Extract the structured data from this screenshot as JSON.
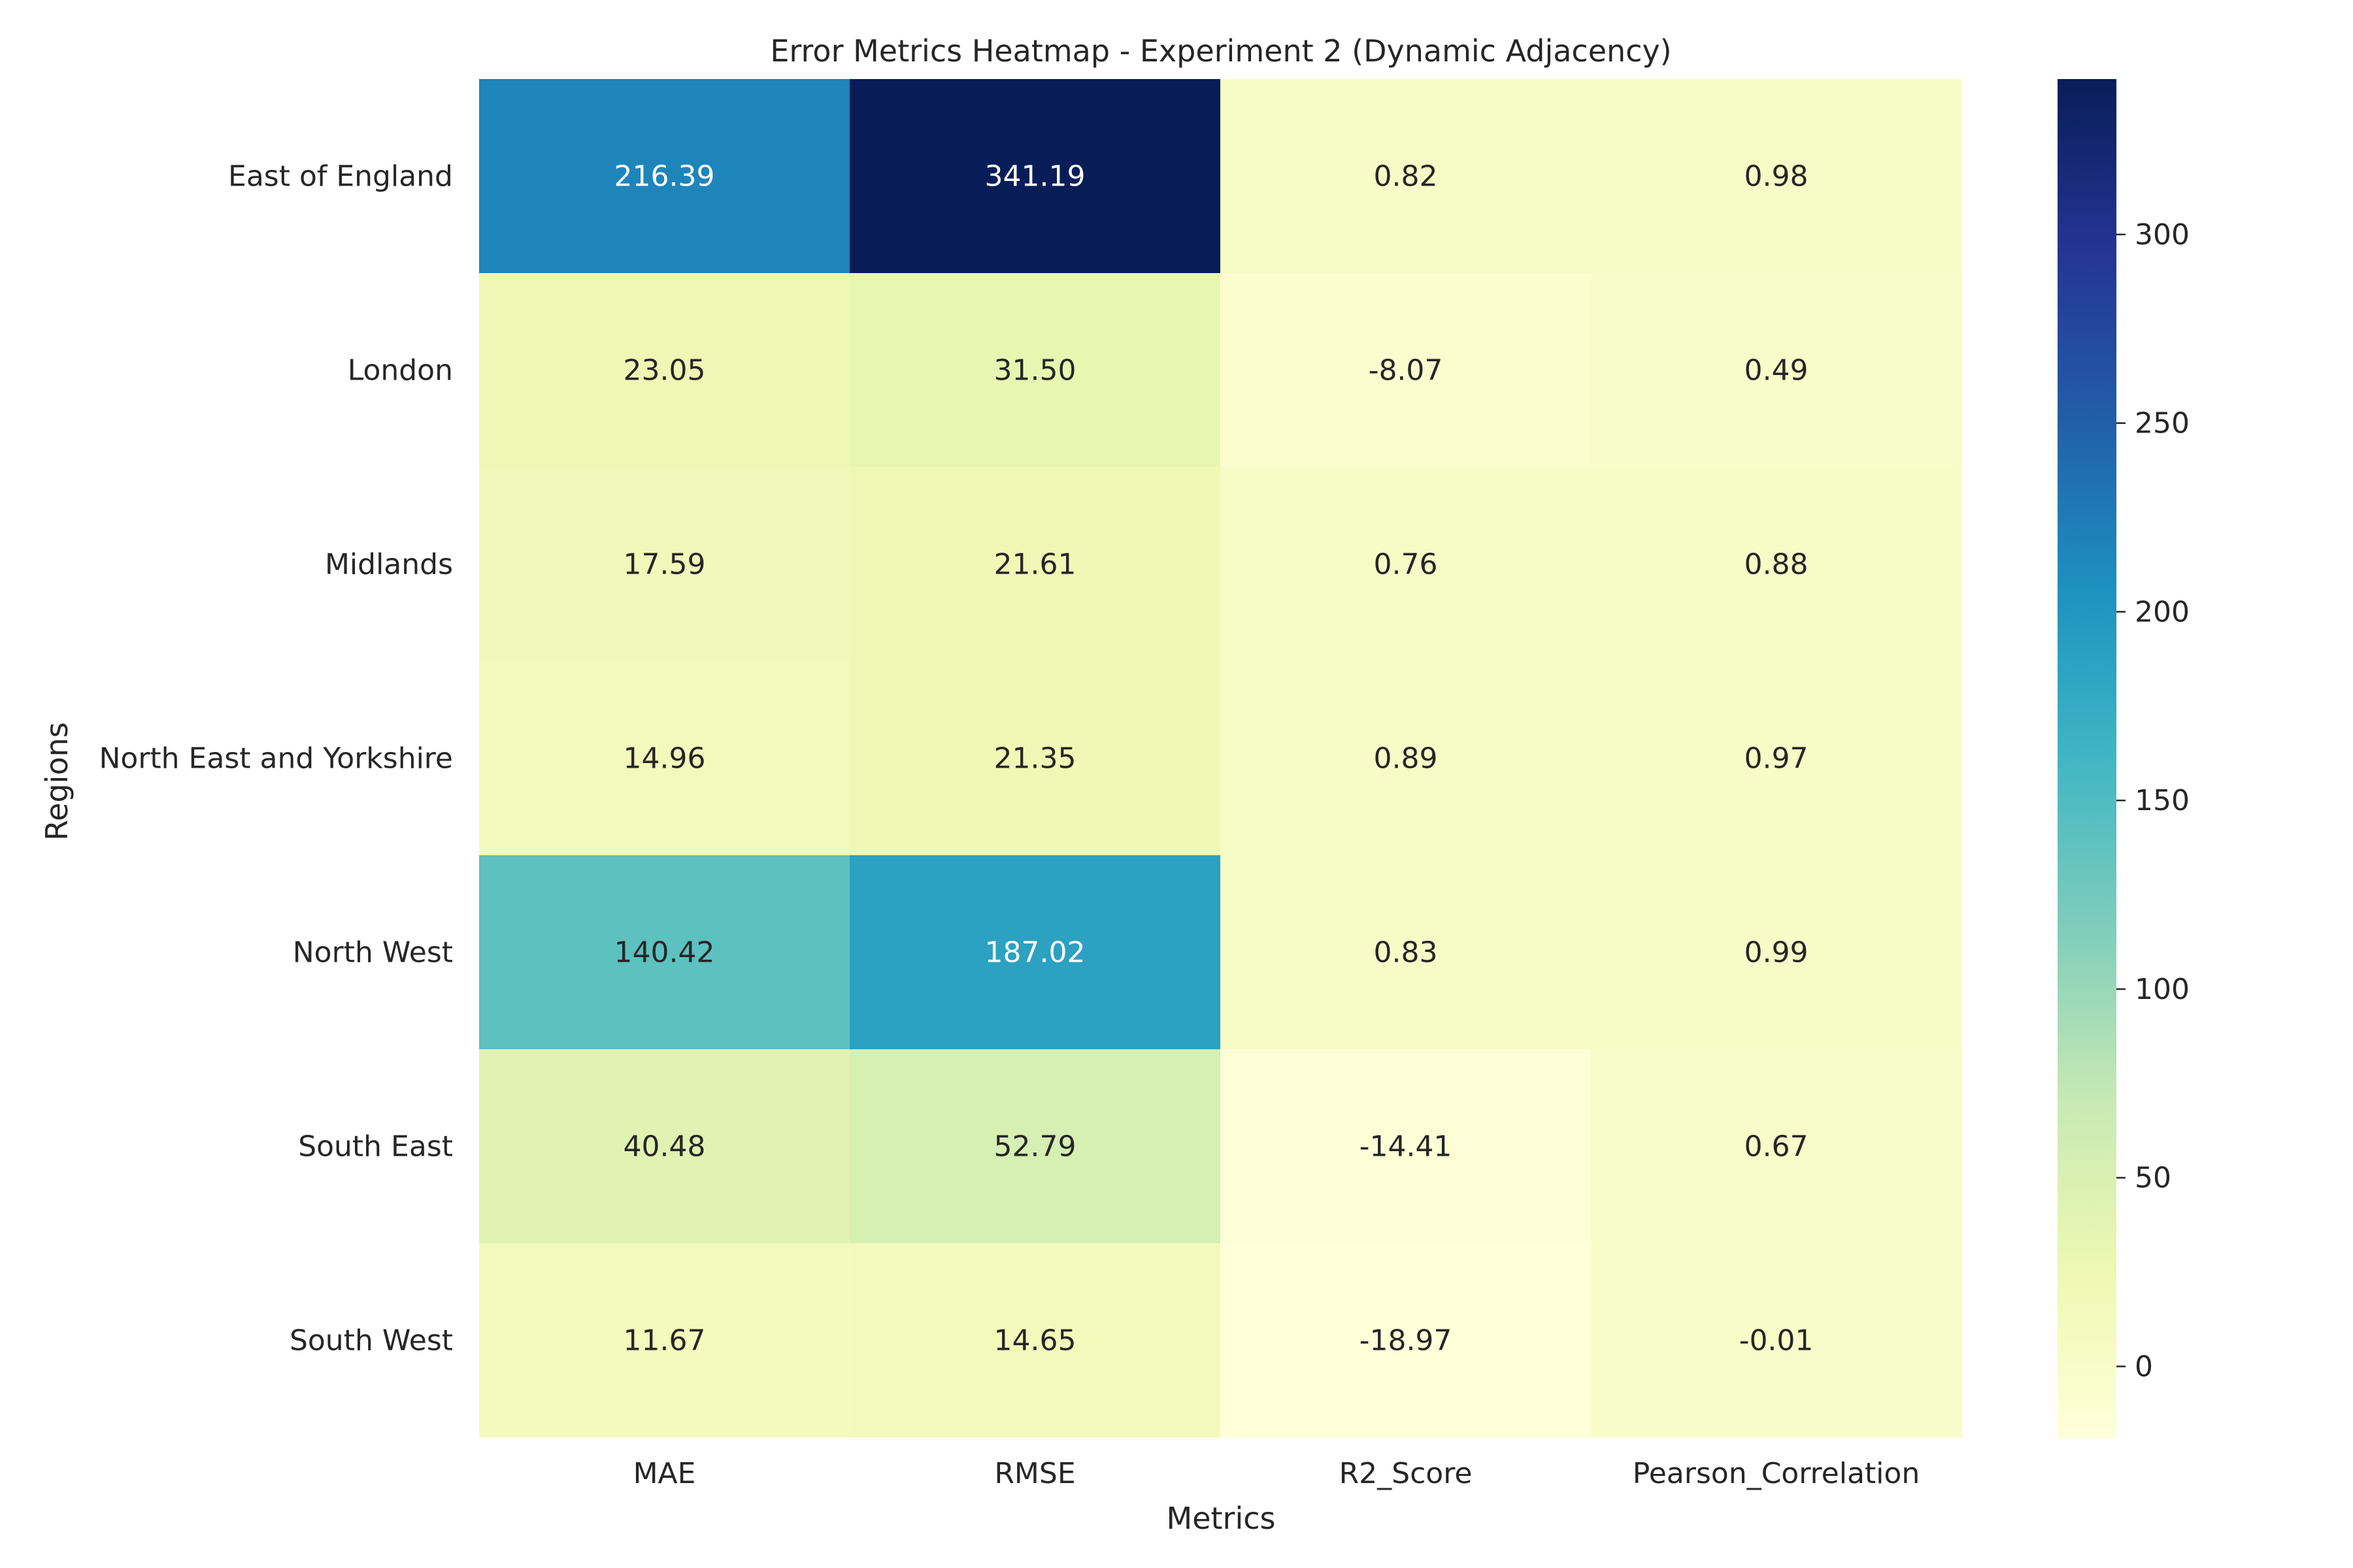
{
  "chart_data": {
    "type": "heatmap",
    "title": "Error Metrics Heatmap - Experiment 2 (Dynamic Adjacency)",
    "xlabel": "Metrics",
    "ylabel": "Regions",
    "columns": [
      "MAE",
      "RMSE",
      "R2_Score",
      "Pearson_Correlation"
    ],
    "rows": [
      "East of England",
      "London",
      "Midlands",
      "North East and Yorkshire",
      "North West",
      "South East",
      "South West"
    ],
    "values": [
      [
        216.39,
        341.19,
        0.82,
        0.98
      ],
      [
        23.05,
        31.5,
        -8.07,
        0.49
      ],
      [
        17.59,
        21.61,
        0.76,
        0.88
      ],
      [
        14.96,
        21.35,
        0.89,
        0.97
      ],
      [
        140.42,
        187.02,
        0.83,
        0.99
      ],
      [
        40.48,
        52.79,
        -14.41,
        0.67
      ],
      [
        11.67,
        14.65,
        -18.97,
        -0.01
      ]
    ],
    "value_format": "2 decimals",
    "colormap": "YlGnBu",
    "color_range": [
      -18.97,
      341.19
    ],
    "colorbar_ticks": [
      0,
      50,
      100,
      150,
      200,
      250,
      300
    ],
    "colorbar_stops": [
      "#ffffd9",
      "#edf8b1",
      "#c7e9b4",
      "#7fcdbb",
      "#41b6c4",
      "#1d91c0",
      "#225ea8",
      "#253494",
      "#081d58"
    ],
    "grid": false,
    "legend": "colorbar-right"
  }
}
